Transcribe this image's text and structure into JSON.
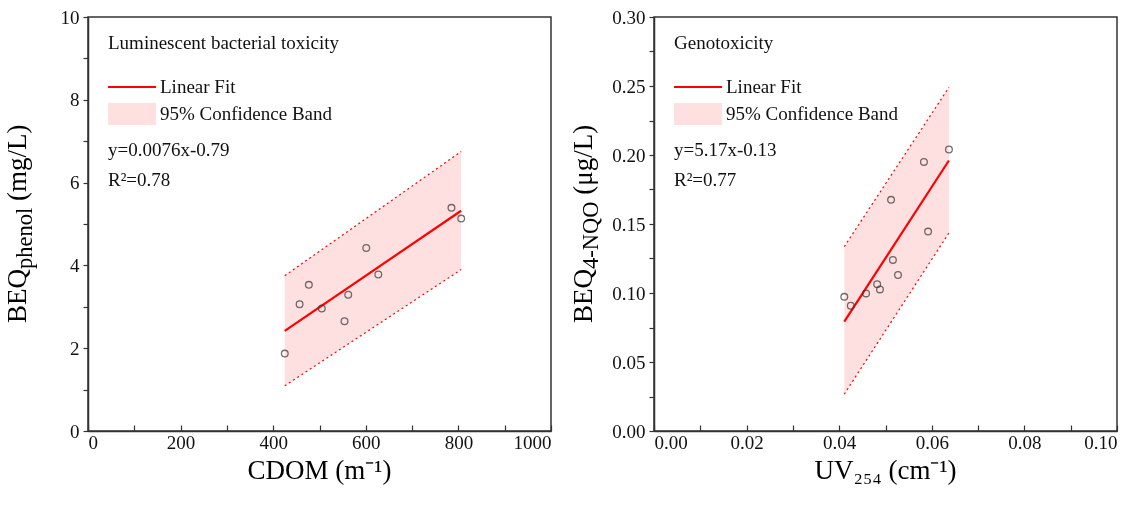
{
  "chart_data": [
    {
      "type": "scatter",
      "title": "Luminescent bacterial toxicity",
      "xlabel": "CDOM (m⁻¹)",
      "ylabel": "BEQ$_{phenol}$ (mg/L)",
      "legend": "top left",
      "xlim": [
        0,
        1000
      ],
      "xticks": [
        0,
        {
          "value": 100,
          "label": null
        },
        200,
        {
          "value": 300,
          "label": null
        },
        400,
        {
          "value": 500,
          "label": null
        },
        600,
        {
          "value": 700,
          "label": null
        },
        800,
        {
          "value": 900,
          "label": null
        },
        1000
      ],
      "ylim": [
        0,
        10
      ],
      "yticks": [
        0,
        {
          "value": 1,
          "label": null
        },
        2,
        {
          "value": 3,
          "label": null
        },
        4,
        {
          "value": 5,
          "label": null
        },
        6,
        {
          "value": 7,
          "label": null
        },
        8,
        {
          "value": 9,
          "label": null
        },
        10
      ],
      "annotations": [
        "95% Confidence Band",
        "y=0.0076x-0.79",
        "R²=0.78"
      ],
      "series": [
        {
          "color": "#333333",
          "x": [
            425,
            457,
            477,
            505,
            554,
            562,
            601,
            627,
            785,
            806
          ],
          "values": [
            1.87,
            3.06,
            3.53,
            2.96,
            2.65,
            3.29,
            4.42,
            3.78,
            5.39,
            5.13
          ]
        },
        {
          "type": "line",
          "name": "Linear Fit",
          "color": "#ff0000",
          "x": [
            425,
            806
          ],
          "values": [
            2.42,
            5.32
          ],
          "lower": [
            1.09,
            3.9
          ],
          "upper": [
            3.75,
            6.75
          ]
        },
        {
          "type": "line",
          "color": "#ff0000",
          "line_style": "dotted",
          "x": [
            425,
            806
          ],
          "values": [
            1.09,
            3.9
          ]
        },
        {
          "type": "line",
          "color": "#ff0000",
          "line_style": "dotted",
          "x": [
            425,
            806
          ],
          "values": [
            3.75,
            6.75
          ]
        }
      ]
    },
    {
      "type": "scatter",
      "title": "Genotoxicity",
      "xlabel": "UV₂₅₄ (cm⁻¹)",
      "ylabel": "BEQ$_{4-NQO}$ (μg/L)",
      "legend": "top left",
      "xlim": [
        0,
        0.1
      ],
      "xticks": [
        {
          "value": 0,
          "label": "0.00"
        },
        {
          "value": 0.01,
          "label": null
        },
        {
          "value": 0.02,
          "label": "0.02"
        },
        {
          "value": 0.03,
          "label": null
        },
        {
          "value": 0.04,
          "label": "0.04"
        },
        {
          "value": 0.05,
          "label": null
        },
        {
          "value": 0.06,
          "label": "0.06"
        },
        {
          "value": 0.07,
          "label": null
        },
        {
          "value": 0.08,
          "label": "0.08"
        },
        {
          "value": 0.09,
          "label": null
        },
        {
          "value": 0.1,
          "label": "0.10"
        }
      ],
      "ylim": [
        0,
        0.3
      ],
      "yticks": [
        {
          "value": 0,
          "label": "0.00"
        },
        {
          "value": 0.025,
          "label": null
        },
        {
          "value": 0.05,
          "label": "0.05"
        },
        {
          "value": 0.075,
          "label": null
        },
        {
          "value": 0.1,
          "label": "0.10"
        },
        {
          "value": 0.125,
          "label": null
        },
        {
          "value": 0.15,
          "label": "0.15"
        },
        {
          "value": 0.175,
          "label": null
        },
        {
          "value": 0.2,
          "label": "0.20"
        },
        {
          "value": 0.225,
          "label": null
        },
        {
          "value": 0.25,
          "label": "0.25"
        },
        {
          "value": 0.275,
          "label": null
        },
        {
          "value": 0.3,
          "label": "0.30"
        }
      ],
      "annotations": [
        "95% Confidence Band",
        "y=5.17x-0.13",
        "R²=0.77"
      ],
      "series": [
        {
          "color": "#333333",
          "x": [
            0.0411,
            0.0425,
            0.0458,
            0.0482,
            0.0488,
            0.0512,
            0.0516,
            0.0527,
            0.0583,
            0.0592,
            0.0637
          ],
          "values": [
            0.0972,
            0.0908,
            0.0997,
            0.1063,
            0.1026,
            0.1675,
            0.124,
            0.113,
            0.195,
            0.1445,
            0.204
          ]
        },
        {
          "type": "line",
          "name": "Linear Fit",
          "color": "#ff0000",
          "x": [
            0.0411,
            0.0637
          ],
          "values": [
            0.0793,
            0.196
          ],
          "lower": [
            0.0267,
            0.1435
          ],
          "upper": [
            0.1336,
            0.249
          ]
        },
        {
          "type": "line",
          "color": "#ff0000",
          "line_style": "dotted",
          "x": [
            0.0411,
            0.0637
          ],
          "values": [
            0.0267,
            0.1435
          ]
        },
        {
          "type": "line",
          "color": "#ff0000",
          "line_style": "dotted",
          "x": [
            0.0411,
            0.0637
          ],
          "values": [
            0.1336,
            0.249
          ]
        }
      ]
    }
  ]
}
